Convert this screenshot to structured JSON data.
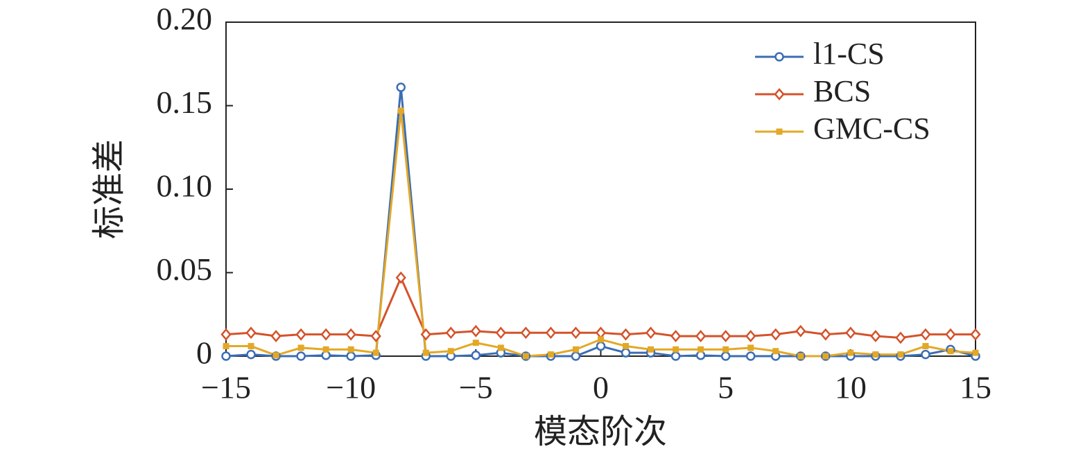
{
  "chart_data": {
    "type": "line",
    "xlabel": "模态阶次",
    "ylabel": "标准差",
    "x": [
      -15,
      -14,
      -13,
      -12,
      -11,
      -10,
      -9,
      -8,
      -7,
      -6,
      -5,
      -4,
      -3,
      -2,
      -1,
      0,
      1,
      2,
      3,
      4,
      5,
      6,
      7,
      8,
      9,
      10,
      11,
      12,
      13,
      14,
      15
    ],
    "series": [
      {
        "name": "l1-CS",
        "color": "#3a6db5",
        "marker": "circle",
        "values": [
          0,
          0.001,
          0,
          0,
          0.0005,
          0,
          0.0005,
          0.161,
          0,
          0,
          0.0005,
          0.002,
          0,
          0,
          0,
          0.006,
          0.002,
          0.002,
          0,
          0.0005,
          0,
          0,
          0,
          0,
          0,
          0,
          0,
          0,
          0.001,
          0.004,
          0
        ]
      },
      {
        "name": "BCS",
        "color": "#d4522a",
        "marker": "diamond",
        "values": [
          0.013,
          0.014,
          0.012,
          0.013,
          0.013,
          0.013,
          0.012,
          0.047,
          0.013,
          0.014,
          0.015,
          0.014,
          0.014,
          0.014,
          0.014,
          0.014,
          0.013,
          0.014,
          0.012,
          0.012,
          0.012,
          0.012,
          0.013,
          0.015,
          0.013,
          0.014,
          0.012,
          0.011,
          0.013,
          0.013,
          0.013
        ]
      },
      {
        "name": "GMC-CS",
        "color": "#e3a826",
        "marker": "square",
        "values": [
          0.006,
          0.006,
          0.0005,
          0.005,
          0.004,
          0.004,
          0.002,
          0.147,
          0.002,
          0.003,
          0.008,
          0.005,
          0,
          0.001,
          0.004,
          0.01,
          0.006,
          0.004,
          0.004,
          0.004,
          0.004,
          0.005,
          0.003,
          0,
          0,
          0.002,
          0.001,
          0.001,
          0.006,
          0.003,
          0.002
        ]
      }
    ],
    "xlim": [
      -15,
      15
    ],
    "xticks": [
      {
        "value": -15,
        "label": "−15"
      },
      {
        "value": -10,
        "label": "−10"
      },
      {
        "value": -5,
        "label": "−5"
      },
      0,
      5,
      10,
      15
    ],
    "ylim": [
      0,
      0.2
    ],
    "yticks": [
      0,
      {
        "value": 0.05,
        "label": "0.05"
      },
      {
        "value": 0.1,
        "label": "0.10"
      },
      {
        "value": 0.15,
        "label": "0.15"
      },
      {
        "value": 0.2,
        "label": "0.20"
      }
    ],
    "grid": false,
    "legend": "upper right"
  }
}
